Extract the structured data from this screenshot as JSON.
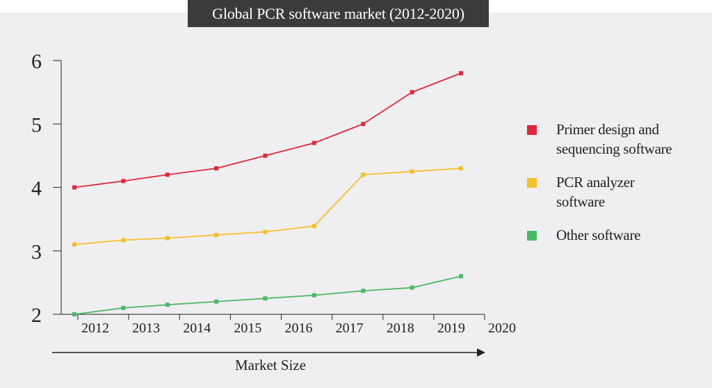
{
  "title": "Global PCR software market (2012-2020)",
  "xlabel": "Market Size",
  "chart_data": {
    "type": "line",
    "title": "Global PCR software market (2012-2020)",
    "xlabel": "Market Size",
    "ylabel": "",
    "x": [
      2011.6,
      2012.6,
      2013.5,
      2014.5,
      2015.5,
      2016.5,
      2017.5,
      2018.5,
      2019.5
    ],
    "xticks": [
      "2012",
      "2013",
      "2014",
      "2015",
      "2016",
      "2017",
      "2018",
      "2019",
      "2020"
    ],
    "xlim": [
      2011.6,
      2020.3
    ],
    "yticks": [
      "2",
      "3",
      "4",
      "5",
      "6"
    ],
    "ylim": [
      2,
      6
    ],
    "grid": false,
    "legend_position": "right",
    "series": [
      {
        "name": "Primer design and sequencing software",
        "color": "#e0283b",
        "values": [
          4.0,
          4.1,
          4.2,
          4.3,
          4.5,
          4.7,
          5.0,
          5.5,
          5.8
        ]
      },
      {
        "name": "PCR analyzer software",
        "color": "#f5c02a",
        "values": [
          3.1,
          3.17,
          3.2,
          3.25,
          3.3,
          3.39,
          4.2,
          4.25,
          4.3
        ]
      },
      {
        "name": "Other software",
        "color": "#4cb866",
        "values": [
          2.0,
          2.1,
          2.15,
          2.2,
          2.25,
          2.3,
          2.37,
          2.42,
          2.6
        ]
      }
    ]
  },
  "legend": [
    {
      "lines": [
        "Primer design and",
        "sequencing software"
      ],
      "color": "#e0283b"
    },
    {
      "lines": [
        "PCR analyzer",
        "software"
      ],
      "color": "#f5c02a"
    },
    {
      "lines": [
        "Other software"
      ],
      "color": "#4cb866"
    }
  ]
}
